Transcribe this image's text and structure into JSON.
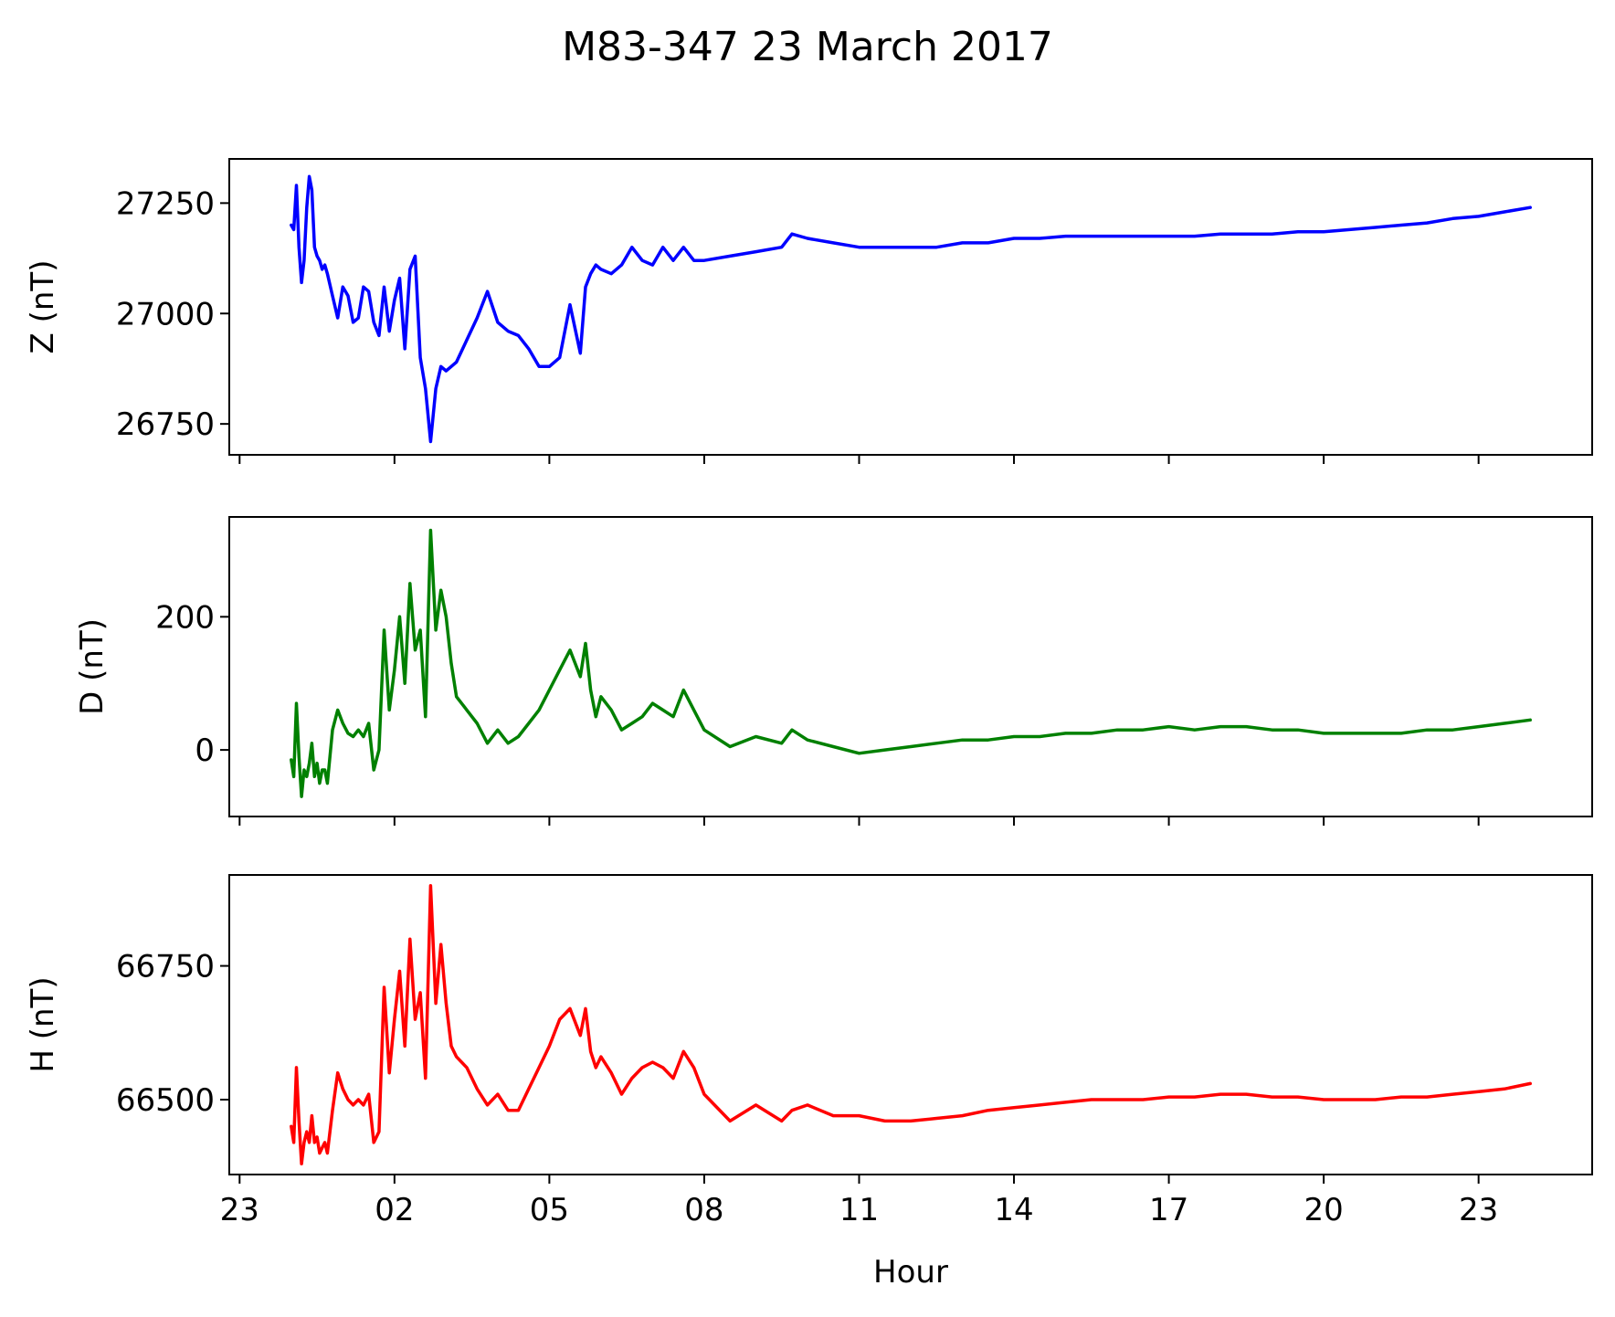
{
  "chart_data": {
    "type": "line",
    "title": "M83-347 23 March 2017",
    "xlabel": "Hour",
    "x_tick_labels": [
      "23",
      "02",
      "05",
      "08",
      "11",
      "14",
      "17",
      "20",
      "23"
    ],
    "x_ticks_hours": [
      -1,
      2,
      5,
      8,
      11,
      14,
      17,
      20,
      23
    ],
    "xlim_hours": [
      -1.2,
      25.2
    ],
    "grid": false,
    "legend": "none",
    "panels": [
      {
        "ylabel": "Z (nT)",
        "color": "#0000ff",
        "ylim": [
          26680,
          27350
        ],
        "yticks": [
          26750,
          27000,
          27250
        ],
        "ytick_labels": [
          "26750",
          "27000",
          "27250"
        ],
        "x_hours": [
          0.0,
          0.05,
          0.1,
          0.15,
          0.2,
          0.25,
          0.3,
          0.35,
          0.4,
          0.45,
          0.5,
          0.55,
          0.6,
          0.65,
          0.7,
          0.8,
          0.9,
          1.0,
          1.1,
          1.2,
          1.3,
          1.4,
          1.5,
          1.6,
          1.7,
          1.8,
          1.9,
          2.0,
          2.1,
          2.2,
          2.3,
          2.4,
          2.5,
          2.6,
          2.7,
          2.8,
          2.9,
          3.0,
          3.1,
          3.2,
          3.4,
          3.6,
          3.8,
          4.0,
          4.2,
          4.4,
          4.6,
          4.8,
          5.0,
          5.2,
          5.4,
          5.6,
          5.7,
          5.8,
          5.9,
          6.0,
          6.2,
          6.4,
          6.6,
          6.8,
          7.0,
          7.2,
          7.4,
          7.6,
          7.8,
          8.0,
          8.5,
          9.0,
          9.5,
          9.7,
          10.0,
          10.5,
          11.0,
          11.5,
          12.0,
          12.5,
          13.0,
          13.5,
          14.0,
          14.5,
          15.0,
          15.5,
          16.0,
          16.5,
          17.0,
          17.5,
          18.0,
          18.5,
          19.0,
          19.5,
          20.0,
          20.5,
          21.0,
          21.5,
          22.0,
          22.5,
          23.0,
          23.5,
          24.0
        ],
        "values": [
          27200,
          27190,
          27290,
          27150,
          27070,
          27120,
          27240,
          27310,
          27280,
          27150,
          27130,
          27120,
          27100,
          27110,
          27090,
          27040,
          26990,
          27060,
          27040,
          26980,
          26990,
          27060,
          27050,
          26980,
          26950,
          27060,
          26960,
          27030,
          27080,
          26920,
          27100,
          27130,
          26900,
          26830,
          26710,
          26830,
          26880,
          26870,
          26880,
          26890,
          26940,
          26990,
          27050,
          26980,
          26960,
          26950,
          26920,
          26880,
          26880,
          26900,
          27020,
          26910,
          27060,
          27090,
          27110,
          27100,
          27090,
          27110,
          27150,
          27120,
          27110,
          27150,
          27120,
          27150,
          27120,
          27120,
          27130,
          27140,
          27150,
          27180,
          27170,
          27160,
          27150,
          27150,
          27150,
          27150,
          27160,
          27160,
          27170,
          27170,
          27175,
          27175,
          27175,
          27175,
          27175,
          27175,
          27180,
          27180,
          27180,
          27185,
          27185,
          27190,
          27195,
          27200,
          27205,
          27215,
          27220,
          27230,
          27240
        ]
      },
      {
        "ylabel": "D (nT)",
        "color": "#008000",
        "ylim": [
          -100,
          350
        ],
        "yticks": [
          0,
          200
        ],
        "ytick_labels": [
          "0",
          "200"
        ],
        "x_hours": [
          0.0,
          0.05,
          0.1,
          0.15,
          0.2,
          0.25,
          0.3,
          0.35,
          0.4,
          0.45,
          0.5,
          0.55,
          0.6,
          0.65,
          0.7,
          0.8,
          0.9,
          1.0,
          1.1,
          1.2,
          1.3,
          1.4,
          1.5,
          1.6,
          1.7,
          1.8,
          1.9,
          2.0,
          2.1,
          2.2,
          2.3,
          2.4,
          2.5,
          2.6,
          2.7,
          2.8,
          2.9,
          3.0,
          3.1,
          3.2,
          3.4,
          3.6,
          3.8,
          4.0,
          4.2,
          4.4,
          4.6,
          4.8,
          5.0,
          5.2,
          5.4,
          5.6,
          5.7,
          5.8,
          5.9,
          6.0,
          6.2,
          6.4,
          6.6,
          6.8,
          7.0,
          7.2,
          7.4,
          7.6,
          7.8,
          8.0,
          8.5,
          9.0,
          9.5,
          9.7,
          10.0,
          10.5,
          11.0,
          11.5,
          12.0,
          12.5,
          13.0,
          13.5,
          14.0,
          14.5,
          15.0,
          15.5,
          16.0,
          16.5,
          17.0,
          17.5,
          18.0,
          18.5,
          19.0,
          19.5,
          20.0,
          20.5,
          21.0,
          21.5,
          22.0,
          22.5,
          23.0,
          23.5,
          24.0
        ],
        "values": [
          -15,
          -40,
          70,
          -10,
          -70,
          -30,
          -40,
          -20,
          10,
          -40,
          -20,
          -50,
          -30,
          -30,
          -50,
          30,
          60,
          40,
          25,
          20,
          30,
          20,
          40,
          -30,
          0,
          180,
          60,
          120,
          200,
          100,
          250,
          150,
          180,
          50,
          330,
          180,
          240,
          200,
          130,
          80,
          60,
          40,
          10,
          30,
          10,
          20,
          40,
          60,
          90,
          120,
          150,
          110,
          160,
          90,
          50,
          80,
          60,
          30,
          40,
          50,
          70,
          60,
          50,
          90,
          60,
          30,
          5,
          20,
          10,
          30,
          15,
          5,
          -5,
          0,
          5,
          10,
          15,
          15,
          20,
          20,
          25,
          25,
          30,
          30,
          35,
          30,
          35,
          35,
          30,
          30,
          25,
          25,
          25,
          25,
          30,
          30,
          35,
          40,
          45
        ]
      },
      {
        "ylabel": "H (nT)",
        "color": "#ff0000",
        "ylim": [
          66360,
          66920
        ],
        "yticks": [
          66500,
          66750
        ],
        "ytick_labels": [
          "66500",
          "66750"
        ],
        "x_hours": [
          0.0,
          0.05,
          0.1,
          0.15,
          0.2,
          0.25,
          0.3,
          0.35,
          0.4,
          0.45,
          0.5,
          0.55,
          0.6,
          0.65,
          0.7,
          0.8,
          0.9,
          1.0,
          1.1,
          1.2,
          1.3,
          1.4,
          1.5,
          1.6,
          1.7,
          1.8,
          1.9,
          2.0,
          2.1,
          2.2,
          2.3,
          2.4,
          2.5,
          2.6,
          2.7,
          2.8,
          2.9,
          3.0,
          3.1,
          3.2,
          3.4,
          3.6,
          3.8,
          4.0,
          4.2,
          4.4,
          4.6,
          4.8,
          5.0,
          5.2,
          5.4,
          5.6,
          5.7,
          5.8,
          5.9,
          6.0,
          6.2,
          6.4,
          6.6,
          6.8,
          7.0,
          7.2,
          7.4,
          7.6,
          7.8,
          8.0,
          8.5,
          9.0,
          9.5,
          9.7,
          10.0,
          10.5,
          11.0,
          11.5,
          12.0,
          12.5,
          13.0,
          13.5,
          14.0,
          14.5,
          15.0,
          15.5,
          16.0,
          16.5,
          17.0,
          17.5,
          18.0,
          18.5,
          19.0,
          19.5,
          20.0,
          20.5,
          21.0,
          21.5,
          22.0,
          22.5,
          23.0,
          23.5,
          24.0
        ],
        "values": [
          66450,
          66420,
          66560,
          66460,
          66380,
          66420,
          66440,
          66420,
          66470,
          66420,
          66430,
          66400,
          66410,
          66420,
          66400,
          66480,
          66550,
          66520,
          66500,
          66490,
          66500,
          66490,
          66510,
          66420,
          66440,
          66710,
          66550,
          66650,
          66740,
          66600,
          66800,
          66650,
          66700,
          66540,
          66900,
          66680,
          66790,
          66680,
          66600,
          66580,
          66560,
          66520,
          66490,
          66510,
          66480,
          66480,
          66520,
          66560,
          66600,
          66650,
          66670,
          66620,
          66670,
          66590,
          66560,
          66580,
          66550,
          66510,
          66540,
          66560,
          66570,
          66560,
          66540,
          66590,
          66560,
          66510,
          66460,
          66490,
          66460,
          66480,
          66490,
          66470,
          66470,
          66460,
          66460,
          66465,
          66470,
          66480,
          66485,
          66490,
          66495,
          66500,
          66500,
          66500,
          66505,
          66505,
          66510,
          66510,
          66505,
          66505,
          66500,
          66500,
          66500,
          66505,
          66505,
          66510,
          66515,
          66520,
          66530
        ]
      }
    ]
  }
}
